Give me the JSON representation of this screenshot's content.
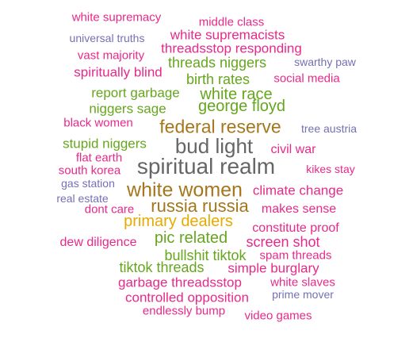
{
  "colors": {
    "pink": "#e7298a",
    "green": "#66a61e",
    "olive": "#a6761d",
    "gold": "#e6ab02",
    "gray": "#666666",
    "slate": "#7570b3"
  },
  "words": [
    {
      "text": "white supremacy",
      "weight": 15,
      "color": "pink"
    },
    {
      "text": "middle class",
      "weight": 15,
      "color": "pink"
    },
    {
      "text": "universal truths",
      "weight": 14,
      "color": "slate"
    },
    {
      "text": "white supremacists",
      "weight": 17,
      "color": "pink"
    },
    {
      "text": "threadsstop responding",
      "weight": 17,
      "color": "pink"
    },
    {
      "text": "vast majority",
      "weight": 15,
      "color": "pink"
    },
    {
      "text": "threads niggers",
      "weight": 18,
      "color": "green"
    },
    {
      "text": "swarthy paw",
      "weight": 14,
      "color": "slate"
    },
    {
      "text": "spiritually blind",
      "weight": 17,
      "color": "pink"
    },
    {
      "text": "birth rates",
      "weight": 18,
      "color": "green"
    },
    {
      "text": "social media",
      "weight": 15,
      "color": "pink"
    },
    {
      "text": "report garbage",
      "weight": 17,
      "color": "green"
    },
    {
      "text": "white race",
      "weight": 20,
      "color": "green"
    },
    {
      "text": "niggers sage",
      "weight": 17,
      "color": "green"
    },
    {
      "text": "george floyd",
      "weight": 20,
      "color": "green"
    },
    {
      "text": "black women",
      "weight": 15,
      "color": "pink"
    },
    {
      "text": "federal reserve",
      "weight": 23,
      "color": "olive"
    },
    {
      "text": "tree austria",
      "weight": 14,
      "color": "slate"
    },
    {
      "text": "stupid niggers",
      "weight": 17,
      "color": "green"
    },
    {
      "text": "bud light",
      "weight": 26,
      "color": "gray"
    },
    {
      "text": "civil war",
      "weight": 16,
      "color": "pink"
    },
    {
      "text": "flat earth",
      "weight": 15,
      "color": "pink"
    },
    {
      "text": "south korea",
      "weight": 15,
      "color": "pink"
    },
    {
      "text": "spiritual realm",
      "weight": 28,
      "color": "gray"
    },
    {
      "text": "kikes stay",
      "weight": 14,
      "color": "pink"
    },
    {
      "text": "gas station",
      "weight": 14,
      "color": "slate"
    },
    {
      "text": "white women",
      "weight": 25,
      "color": "olive"
    },
    {
      "text": "climate change",
      "weight": 17,
      "color": "pink"
    },
    {
      "text": "real estate",
      "weight": 14,
      "color": "slate"
    },
    {
      "text": "dont care",
      "weight": 15,
      "color": "pink"
    },
    {
      "text": "russia russia",
      "weight": 22,
      "color": "olive"
    },
    {
      "text": "makes sense",
      "weight": 16,
      "color": "pink"
    },
    {
      "text": "primary dealers",
      "weight": 20,
      "color": "gold"
    },
    {
      "text": "constitute proof",
      "weight": 16,
      "color": "pink"
    },
    {
      "text": "dew diligence",
      "weight": 16,
      "color": "pink"
    },
    {
      "text": "pic related",
      "weight": 20,
      "color": "green"
    },
    {
      "text": "screen shot",
      "weight": 18,
      "color": "pink"
    },
    {
      "text": "bullshit tiktok",
      "weight": 18,
      "color": "green"
    },
    {
      "text": "spam threads",
      "weight": 15,
      "color": "pink"
    },
    {
      "text": "tiktok threads",
      "weight": 18,
      "color": "green"
    },
    {
      "text": "simple burglary",
      "weight": 17,
      "color": "pink"
    },
    {
      "text": "garbage threadsstop",
      "weight": 17,
      "color": "pink"
    },
    {
      "text": "white slaves",
      "weight": 15,
      "color": "pink"
    },
    {
      "text": "controlled opposition",
      "weight": 17,
      "color": "pink"
    },
    {
      "text": "prime mover",
      "weight": 14,
      "color": "slate"
    },
    {
      "text": "endlessly bump",
      "weight": 15,
      "color": "pink"
    },
    {
      "text": "video games",
      "weight": 15,
      "color": "pink"
    }
  ]
}
